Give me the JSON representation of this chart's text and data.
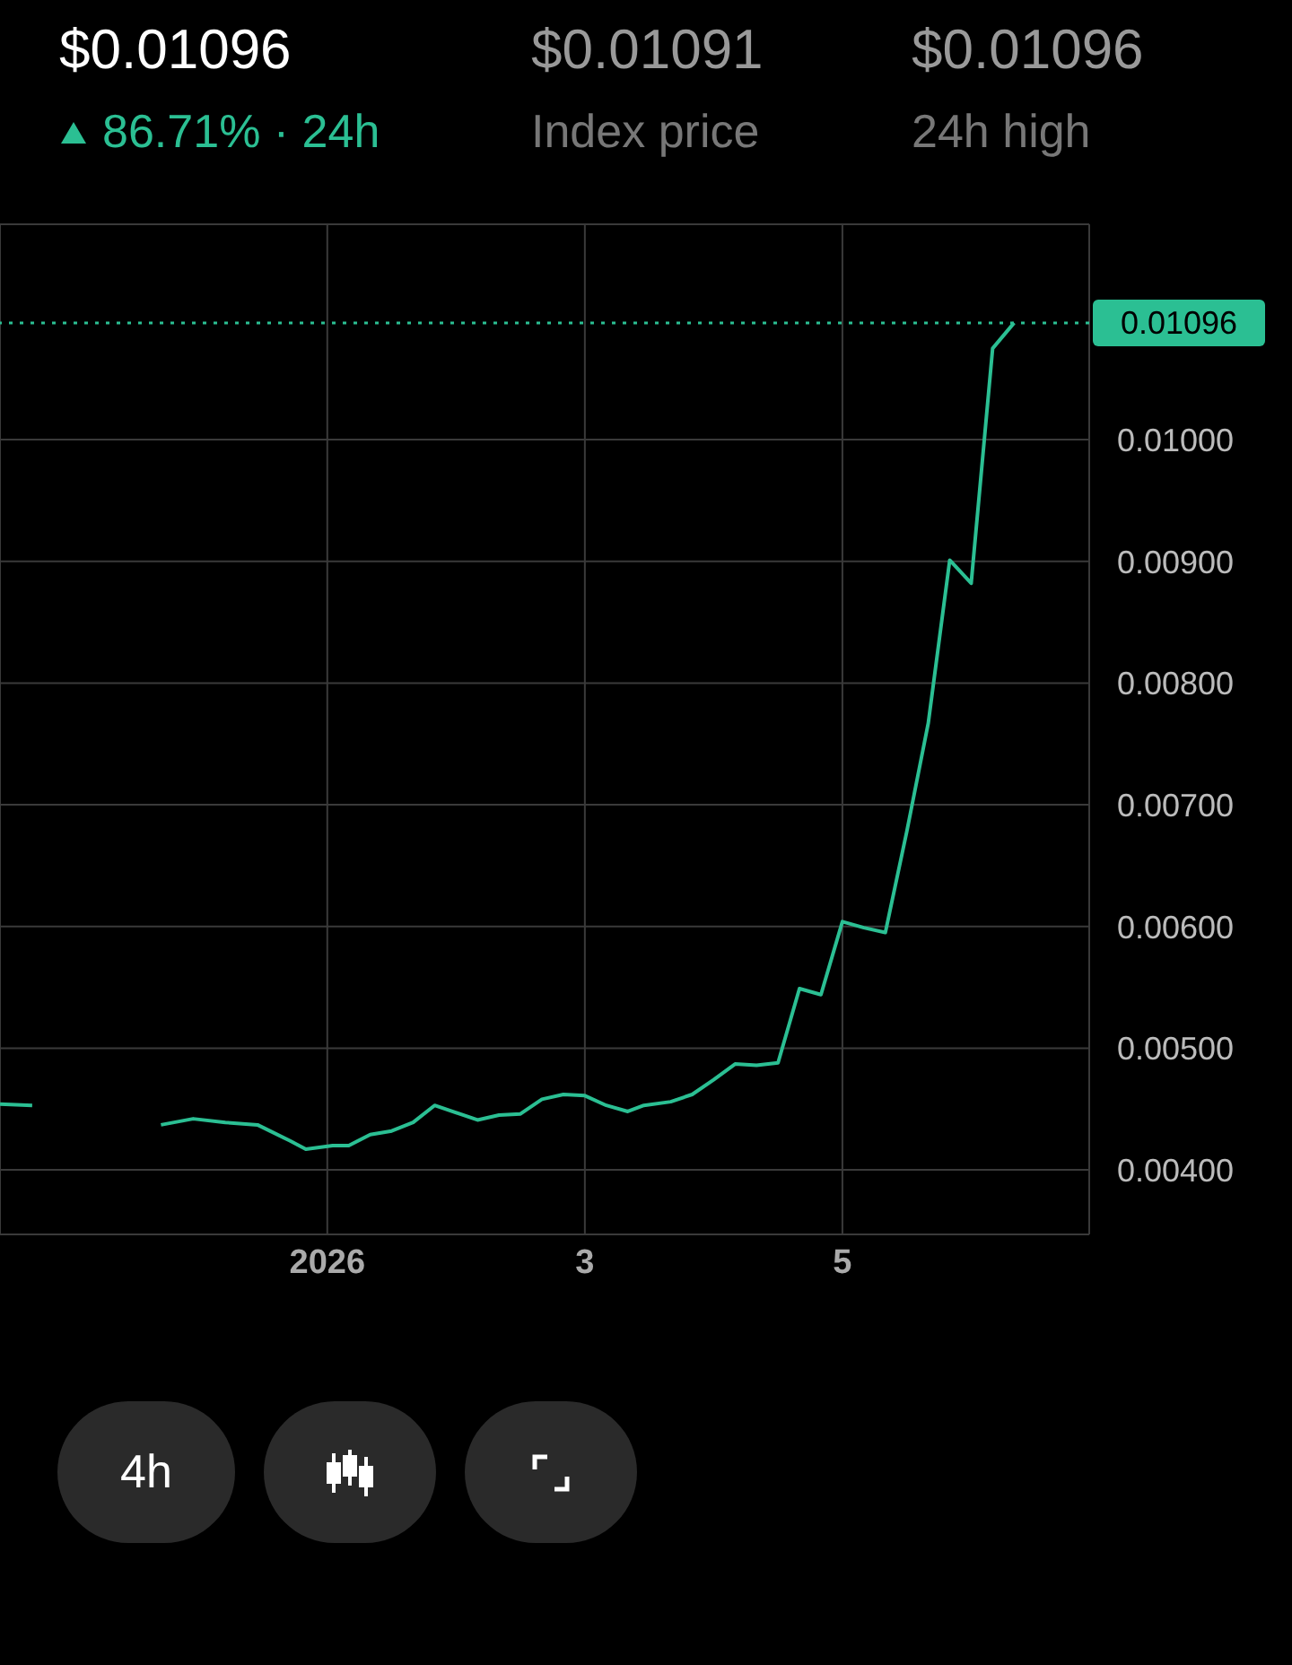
{
  "chart_data": {
    "type": "line",
    "title": "$0.01096",
    "subtitle": "86.71% · 24h",
    "annotations": [
      "$0.01091",
      "Index price",
      "$0.01096",
      "24h high",
      "4h"
    ],
    "x": [
      "2025-12-29T11:00",
      "2025-12-29T17:00",
      "2025-12-29T23:00",
      "2025-12-30T05:00",
      "2025-12-30T11:00",
      "2025-12-30T17:00",
      "2025-12-30T23:00",
      "2025-12-31T05:00",
      "2025-12-31T11:00",
      "2025-12-31T17:00",
      "2025-12-31T20:00",
      "2026-01-01T01:00",
      "2026-01-01T04:00",
      "2026-01-01T08:00",
      "2026-01-01T12:00",
      "2026-01-01T16:00",
      "2026-01-01T20:00",
      "2026-01-02T04:00",
      "2026-01-02T08:00",
      "2026-01-02T12:00",
      "2026-01-02T16:00",
      "2026-01-02T20:00",
      "2026-01-03T00:00",
      "2026-01-03T04:00",
      "2026-01-03T08:00",
      "2026-01-03T11:00",
      "2026-01-03T16:00",
      "2026-01-03T20:00",
      "2026-01-04T00:00",
      "2026-01-04T04:00",
      "2026-01-04T08:00",
      "2026-01-04T12:00",
      "2026-01-04T16:00",
      "2026-01-04T20:00",
      "2026-01-05T00:00",
      "2026-01-05T04:00",
      "2026-01-05T08:00",
      "2026-01-05T12:00",
      "2026-01-05T16:00",
      "2026-01-05T20:00",
      "2026-01-06T00:00",
      "2026-01-06T04:00",
      "2026-01-06T08:00"
    ],
    "series": [
      {
        "color": "#2bbf93",
        "values": [
          0.00454,
          0.00453,
          null,
          null,
          null,
          0.00437,
          0.00442,
          0.00439,
          0.00437,
          0.00424,
          0.00417,
          0.0042,
          0.0042,
          0.00429,
          0.00432,
          0.00439,
          0.00453,
          0.00441,
          0.00445,
          0.00446,
          0.00458,
          0.00462,
          0.00461,
          0.00453,
          0.00448,
          0.00453,
          0.00456,
          0.00462,
          0.00474,
          0.00487,
          0.00486,
          0.00488,
          0.00549,
          0.00544,
          0.00604,
          0.00599,
          0.00595,
          0.00678,
          0.00767,
          0.00901,
          0.00882,
          0.01075,
          0.01096
        ]
      }
    ],
    "xlim": [
      "2025-12-29T11:00",
      "2026-01-06T22:00"
    ],
    "xticks": [
      {
        "value": "2026-01-01",
        "label": "2026"
      },
      {
        "value": "2026-01-03",
        "label": "3"
      },
      {
        "value": "2026-01-05",
        "label": "5"
      }
    ],
    "ylim": [
      0.00347,
      0.01177
    ],
    "yticks": [
      {
        "value": 0.004,
        "label": "0.00400"
      },
      {
        "value": 0.005,
        "label": "0.00500"
      },
      {
        "value": 0.006,
        "label": "0.00600"
      },
      {
        "value": 0.007,
        "label": "0.00700"
      },
      {
        "value": 0.008,
        "label": "0.00800"
      },
      {
        "value": 0.009,
        "label": "0.00900"
      },
      {
        "value": 0.01,
        "label": "0.01000"
      }
    ],
    "ref_lines": [
      {
        "axis": "y",
        "value": 0.01096,
        "label": "0.01096",
        "color": "#2bbf93",
        "line_style": "dotted"
      }
    ],
    "grid": true,
    "line_style": "solid",
    "marker": "none"
  }
}
